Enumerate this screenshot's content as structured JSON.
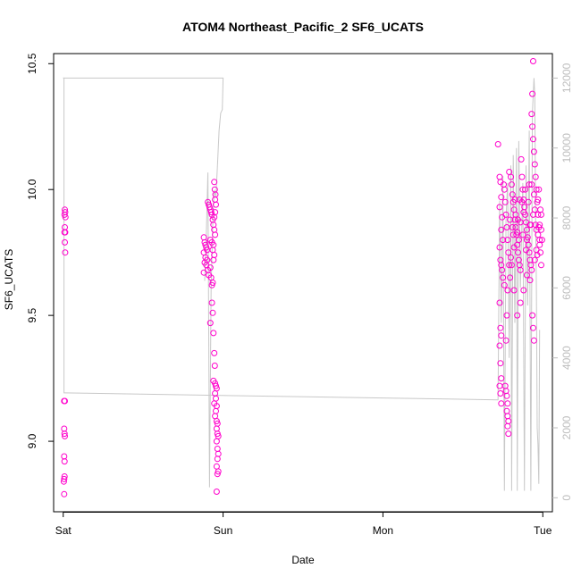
{
  "chart_data": {
    "type": "scatter",
    "title": "ATOM4 Northeast_Pacific_2 SF6_UCATS",
    "xlabel": "Date",
    "ylabel": "SF6_UCATS",
    "x_tick_labels": [
      "Sat",
      "Sun",
      "Mon",
      "Tue"
    ],
    "x_ticks_days": [
      0,
      1,
      2,
      3
    ],
    "y_ticks": [
      9.0,
      9.5,
      10.0,
      10.5
    ],
    "y_tick_labels": [
      "9.0",
      "9.5",
      "10.0",
      "10.5"
    ],
    "ylim": [
      8.72,
      10.54
    ],
    "xlim_days": [
      -0.06,
      3.06
    ],
    "y2_ticks": [
      0,
      2000,
      4000,
      6000,
      8000,
      10000,
      12000
    ],
    "y2_tick_labels": [
      "0",
      "2000",
      "4000",
      "6000",
      "8000",
      "10000",
      "12000"
    ],
    "y2lim": [
      -400,
      12700
    ],
    "colors": {
      "sf6_points": "#ff00cc",
      "altitude_line": "#c8c8c8",
      "axis": "#000000",
      "right_axis": "#bdbdbd"
    },
    "series": [
      {
        "kind": "points",
        "axis": "left",
        "points": [
          [
            0.01,
            9.92
          ],
          [
            0.012,
            9.91
          ],
          [
            0.008,
            9.9
          ],
          [
            0.014,
            9.89
          ],
          [
            0.01,
            9.85
          ],
          [
            0.012,
            9.83
          ],
          [
            0.008,
            9.83
          ],
          [
            0.01,
            9.79
          ],
          [
            0.012,
            9.75
          ],
          [
            0.006,
            9.16
          ],
          [
            0.01,
            9.16
          ],
          [
            0.006,
            9.05
          ],
          [
            0.008,
            9.03
          ],
          [
            0.01,
            9.02
          ],
          [
            0.006,
            8.94
          ],
          [
            0.008,
            8.92
          ],
          [
            0.008,
            8.86
          ],
          [
            0.006,
            8.85
          ],
          [
            0.004,
            8.84
          ],
          [
            0.006,
            8.79
          ],
          [
            0.88,
            9.81
          ],
          [
            0.885,
            9.79
          ],
          [
            0.89,
            9.78
          ],
          [
            0.895,
            9.77
          ],
          [
            0.9,
            9.76
          ],
          [
            0.88,
            9.75
          ],
          [
            0.89,
            9.73
          ],
          [
            0.9,
            9.72
          ],
          [
            0.885,
            9.71
          ],
          [
            0.895,
            9.7
          ],
          [
            0.905,
            9.68
          ],
          [
            0.88,
            9.67
          ],
          [
            0.91,
            9.66
          ],
          [
            0.92,
            9.69
          ],
          [
            0.905,
            9.95
          ],
          [
            0.91,
            9.94
          ],
          [
            0.915,
            9.93
          ],
          [
            0.92,
            9.92
          ],
          [
            0.925,
            9.91
          ],
          [
            0.93,
            9.9
          ],
          [
            0.935,
            9.88
          ],
          [
            0.94,
            9.86
          ],
          [
            0.945,
            9.84
          ],
          [
            0.95,
            9.82
          ],
          [
            0.92,
            9.8
          ],
          [
            0.93,
            9.79
          ],
          [
            0.94,
            9.78
          ],
          [
            0.935,
            9.76
          ],
          [
            0.945,
            9.74
          ],
          [
            0.94,
            9.72
          ],
          [
            0.925,
            9.65
          ],
          [
            0.935,
            9.63
          ],
          [
            0.93,
            9.62
          ],
          [
            0.945,
            10.03
          ],
          [
            0.948,
            10.0
          ],
          [
            0.952,
            9.98
          ],
          [
            0.95,
            9.96
          ],
          [
            0.955,
            9.94
          ],
          [
            0.95,
            9.91
          ],
          [
            0.945,
            9.89
          ],
          [
            0.93,
            9.55
          ],
          [
            0.935,
            9.51
          ],
          [
            0.92,
            9.47
          ],
          [
            0.94,
            9.43
          ],
          [
            0.945,
            9.35
          ],
          [
            0.948,
            9.3
          ],
          [
            0.94,
            9.24
          ],
          [
            0.95,
            9.23
          ],
          [
            0.955,
            9.22
          ],
          [
            0.96,
            9.21
          ],
          [
            0.95,
            9.19
          ],
          [
            0.955,
            9.17
          ],
          [
            0.945,
            9.15
          ],
          [
            0.96,
            9.14
          ],
          [
            0.955,
            9.12
          ],
          [
            0.95,
            9.1
          ],
          [
            0.96,
            9.08
          ],
          [
            0.965,
            9.07
          ],
          [
            0.96,
            9.05
          ],
          [
            0.965,
            9.03
          ],
          [
            0.97,
            9.02
          ],
          [
            0.96,
            9.0
          ],
          [
            0.965,
            8.97
          ],
          [
            0.97,
            8.95
          ],
          [
            0.965,
            8.93
          ],
          [
            0.96,
            8.9
          ],
          [
            0.97,
            8.88
          ],
          [
            0.965,
            8.87
          ],
          [
            0.96,
            8.8
          ],
          [
            2.72,
            10.18
          ],
          [
            2.73,
            10.05
          ],
          [
            2.735,
            10.03
          ],
          [
            2.74,
            9.97
          ],
          [
            2.73,
            9.93
          ],
          [
            2.745,
            9.89
          ],
          [
            2.74,
            9.84
          ],
          [
            2.75,
            9.8
          ],
          [
            2.73,
            9.77
          ],
          [
            2.735,
            9.72
          ],
          [
            2.74,
            9.7
          ],
          [
            2.745,
            9.68
          ],
          [
            2.75,
            9.65
          ],
          [
            2.73,
            9.55
          ],
          [
            2.735,
            9.45
          ],
          [
            2.74,
            9.42
          ],
          [
            2.73,
            9.38
          ],
          [
            2.735,
            9.31
          ],
          [
            2.74,
            9.25
          ],
          [
            2.73,
            9.22
          ],
          [
            2.735,
            9.19
          ],
          [
            2.74,
            9.15
          ],
          [
            2.76,
            10.0
          ],
          [
            2.765,
            9.95
          ],
          [
            2.77,
            9.9
          ],
          [
            2.775,
            9.85
          ],
          [
            2.78,
            9.8
          ],
          [
            2.785,
            9.75
          ],
          [
            2.79,
            9.7
          ],
          [
            2.795,
            9.65
          ],
          [
            2.78,
            9.6
          ],
          [
            2.775,
            9.5
          ],
          [
            2.77,
            9.4
          ],
          [
            2.765,
            9.22
          ],
          [
            2.77,
            9.2
          ],
          [
            2.775,
            9.18
          ],
          [
            2.78,
            9.15
          ],
          [
            2.775,
            9.12
          ],
          [
            2.78,
            9.1
          ],
          [
            2.785,
            9.08
          ],
          [
            2.78,
            9.06
          ],
          [
            2.785,
            9.03
          ],
          [
            2.8,
            10.05
          ],
          [
            2.805,
            10.02
          ],
          [
            2.81,
            9.98
          ],
          [
            2.815,
            9.95
          ],
          [
            2.82,
            9.92
          ],
          [
            2.825,
            9.88
          ],
          [
            2.83,
            9.85
          ],
          [
            2.835,
            9.82
          ],
          [
            2.84,
            9.78
          ],
          [
            2.845,
            9.75
          ],
          [
            2.85,
            9.72
          ],
          [
            2.855,
            9.7
          ],
          [
            2.86,
            9.68
          ],
          [
            2.865,
            10.12
          ],
          [
            2.87,
            10.05
          ],
          [
            2.875,
            10.0
          ],
          [
            2.88,
            9.96
          ],
          [
            2.885,
            9.93
          ],
          [
            2.89,
            9.9
          ],
          [
            2.895,
            9.87
          ],
          [
            2.9,
            9.84
          ],
          [
            2.905,
            9.81
          ],
          [
            2.91,
            9.78
          ],
          [
            2.915,
            9.75
          ],
          [
            2.92,
            9.72
          ],
          [
            2.925,
            9.7
          ],
          [
            2.93,
            9.68
          ],
          [
            2.94,
            10.51
          ],
          [
            2.935,
            10.38
          ],
          [
            2.93,
            10.3
          ],
          [
            2.935,
            10.25
          ],
          [
            2.94,
            10.2
          ],
          [
            2.945,
            10.15
          ],
          [
            2.95,
            10.1
          ],
          [
            2.955,
            10.05
          ],
          [
            2.96,
            10.0
          ],
          [
            2.965,
            9.95
          ],
          [
            2.97,
            9.9
          ],
          [
            2.975,
            9.85
          ],
          [
            2.98,
            9.8
          ],
          [
            2.985,
            9.75
          ],
          [
            2.99,
            9.7
          ],
          [
            2.935,
            9.5
          ],
          [
            2.94,
            9.45
          ],
          [
            2.945,
            9.4
          ],
          [
            2.82,
            9.6
          ],
          [
            2.84,
            9.5
          ],
          [
            2.86,
            9.55
          ],
          [
            2.88,
            9.6
          ],
          [
            2.9,
            9.66
          ],
          [
            2.92,
            9.64
          ],
          [
            2.95,
            9.72
          ],
          [
            2.96,
            9.76
          ],
          [
            2.97,
            9.82
          ],
          [
            2.98,
            9.86
          ],
          [
            2.99,
            9.9
          ],
          [
            2.81,
            9.85
          ],
          [
            2.83,
            9.9
          ],
          [
            2.85,
            9.8
          ],
          [
            2.87,
            9.95
          ],
          [
            2.89,
            10.0
          ],
          [
            2.91,
            9.95
          ],
          [
            2.93,
            10.02
          ],
          [
            2.95,
            9.92
          ],
          [
            2.97,
            9.96
          ],
          [
            2.99,
            9.84
          ],
          [
            2.8,
            9.73
          ],
          [
            2.82,
            9.77
          ],
          [
            2.84,
            9.83
          ],
          [
            2.86,
            9.87
          ],
          [
            2.88,
            9.91
          ],
          [
            2.9,
            9.8
          ],
          [
            2.92,
            9.86
          ],
          [
            2.94,
            9.9
          ],
          [
            2.96,
            9.84
          ],
          [
            2.98,
            9.78
          ],
          [
            2.755,
            10.02
          ],
          [
            2.76,
            9.62
          ],
          [
            2.79,
            10.07
          ],
          [
            2.795,
            9.88
          ],
          [
            2.805,
            9.7
          ],
          [
            2.815,
            9.82
          ],
          [
            2.825,
            9.96
          ],
          [
            2.845,
            9.88
          ],
          [
            2.855,
            9.96
          ],
          [
            2.875,
            9.82
          ],
          [
            2.895,
            9.76
          ],
          [
            2.915,
            10.02
          ],
          [
            2.925,
            9.86
          ],
          [
            2.945,
            9.98
          ],
          [
            2.955,
            9.86
          ],
          [
            2.965,
            9.74
          ],
          [
            2.975,
            10.0
          ],
          [
            2.985,
            9.92
          ],
          [
            2.995,
            9.8
          ]
        ]
      },
      {
        "kind": "line",
        "axis": "right",
        "points": [
          [
            0.0,
            12000
          ],
          [
            0.005,
            12000
          ],
          [
            0.005,
            3000
          ],
          [
            0.01,
            3000
          ],
          [
            2.72,
            2800
          ],
          [
            2.72,
            2900
          ],
          [
            2.73,
            8500
          ],
          [
            2.74,
            5000
          ],
          [
            2.75,
            9200
          ],
          [
            2.76,
            200
          ],
          [
            2.77,
            8000
          ],
          [
            2.78,
            9000
          ],
          [
            2.79,
            4000
          ],
          [
            2.8,
            9500
          ],
          [
            2.805,
            200
          ],
          [
            2.815,
            9800
          ],
          [
            2.825,
            5000
          ],
          [
            2.835,
            10000
          ],
          [
            2.84,
            200
          ],
          [
            2.85,
            10200
          ],
          [
            2.86,
            6000
          ],
          [
            2.875,
            9000
          ],
          [
            2.885,
            200
          ],
          [
            2.895,
            9500
          ],
          [
            2.905,
            5500
          ],
          [
            2.915,
            10500
          ],
          [
            2.925,
            200
          ],
          [
            2.935,
            11000
          ],
          [
            2.945,
            12000
          ],
          [
            2.95,
            11500
          ],
          [
            2.955,
            8000
          ],
          [
            2.96,
            6000
          ],
          [
            2.965,
            2000
          ],
          [
            2.97,
            1500
          ],
          [
            2.975,
            400
          ],
          [
            2.98,
            4800
          ]
        ]
      },
      {
        "kind": "line",
        "axis": "right",
        "points": [
          [
            0.0,
            12000
          ],
          [
            1.0,
            12000
          ],
          [
            0.995,
            11100
          ],
          [
            0.985,
            11000
          ],
          [
            0.975,
            10500
          ],
          [
            0.965,
            9500
          ],
          [
            0.955,
            8600
          ],
          [
            0.945,
            8800
          ],
          [
            0.935,
            7800
          ],
          [
            0.925,
            6000
          ],
          [
            0.915,
            300
          ],
          [
            0.905,
            9300
          ],
          [
            0.895,
            7500
          ],
          [
            0.885,
            6200
          ]
        ]
      }
    ]
  }
}
